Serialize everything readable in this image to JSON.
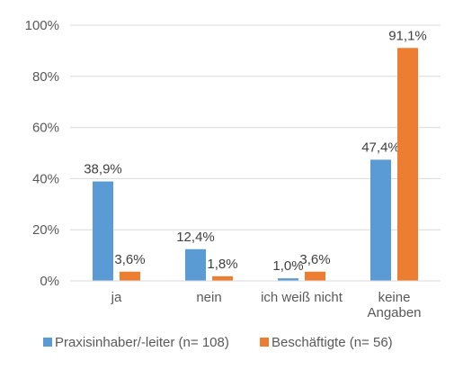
{
  "chart_data": {
    "type": "bar",
    "categories": [
      [
        "ja"
      ],
      [
        "nein"
      ],
      [
        "ich weiß nicht"
      ],
      [
        "keine",
        "Angaben"
      ]
    ],
    "series": [
      {
        "name": "Praxisinhaber/-leiter (n= 108)",
        "color": "#5B9BD5",
        "values": [
          38.9,
          12.4,
          1.0,
          47.4
        ],
        "labels": [
          "38,9%",
          "12,4%",
          "1,0%",
          "47,4%"
        ]
      },
      {
        "name": "Beschäftigte (n= 56)",
        "color": "#ED7D31",
        "values": [
          3.6,
          1.8,
          3.6,
          91.1
        ],
        "labels": [
          "3,6%",
          "1,8%",
          "3,6%",
          "91,1%"
        ]
      }
    ],
    "yticks": [
      "0%",
      "20%",
      "40%",
      "60%",
      "80%",
      "100%"
    ],
    "ylim": [
      0,
      100
    ],
    "grid": true,
    "legend": "bottom",
    "gridColor": "#D9D9D9"
  }
}
